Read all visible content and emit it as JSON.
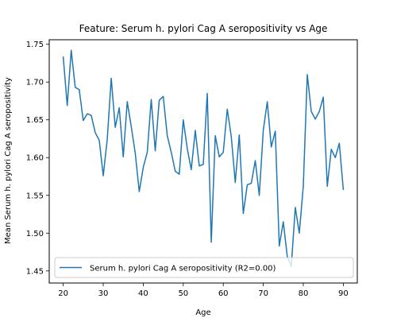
{
  "chart_data": {
    "type": "line",
    "title": "Feature: Serum h. pylori Cag A seropositivity vs Age",
    "xlabel": "Age",
    "ylabel": "Mean Serum h. pylori Cag A seropositivity",
    "xlim": [
      16.5,
      93.5
    ],
    "ylim": [
      1.434,
      1.756
    ],
    "xticks": [
      20,
      30,
      40,
      50,
      60,
      70,
      80,
      90
    ],
    "yticks": [
      1.45,
      1.5,
      1.55,
      1.6,
      1.65,
      1.7,
      1.75
    ],
    "xtick_labels": [
      "20",
      "30",
      "40",
      "50",
      "60",
      "70",
      "80",
      "90"
    ],
    "ytick_labels": [
      "1.45",
      "1.50",
      "1.55",
      "1.60",
      "1.65",
      "1.70",
      "1.75"
    ],
    "grid": false,
    "legend_position": "lower-left",
    "series": [
      {
        "name": "Serum h. pylori Cag A seropositivity (R2=0.00)",
        "color": "#1f77b4",
        "x": [
          20,
          21,
          22,
          23,
          24,
          25,
          26,
          27,
          28,
          29,
          30,
          31,
          32,
          33,
          34,
          35,
          36,
          37,
          38,
          39,
          40,
          41,
          42,
          43,
          44,
          45,
          46,
          47,
          48,
          49,
          50,
          51,
          52,
          53,
          54,
          55,
          56,
          57,
          58,
          59,
          60,
          61,
          62,
          63,
          64,
          65,
          66,
          67,
          68,
          69,
          70,
          71,
          72,
          73,
          74,
          75,
          76,
          77,
          78,
          79,
          80,
          81,
          82,
          83,
          84,
          85,
          86,
          87,
          88,
          89,
          90
        ],
        "y": [
          1.733,
          1.669,
          1.742,
          1.693,
          1.69,
          1.649,
          1.658,
          1.656,
          1.633,
          1.623,
          1.576,
          1.624,
          1.705,
          1.64,
          1.666,
          1.601,
          1.674,
          1.641,
          1.606,
          1.555,
          1.587,
          1.607,
          1.677,
          1.609,
          1.676,
          1.681,
          1.629,
          1.607,
          1.582,
          1.578,
          1.65,
          1.612,
          1.584,
          1.636,
          1.589,
          1.591,
          1.685,
          1.488,
          1.629,
          1.601,
          1.607,
          1.664,
          1.628,
          1.567,
          1.63,
          1.526,
          1.564,
          1.566,
          1.596,
          1.55,
          1.636,
          1.674,
          1.614,
          1.635,
          1.483,
          1.515,
          1.469,
          1.456,
          1.534,
          1.5,
          1.562,
          1.71,
          1.661,
          1.651,
          1.661,
          1.68,
          1.562,
          1.611,
          1.6,
          1.619,
          1.558
        ]
      }
    ]
  }
}
